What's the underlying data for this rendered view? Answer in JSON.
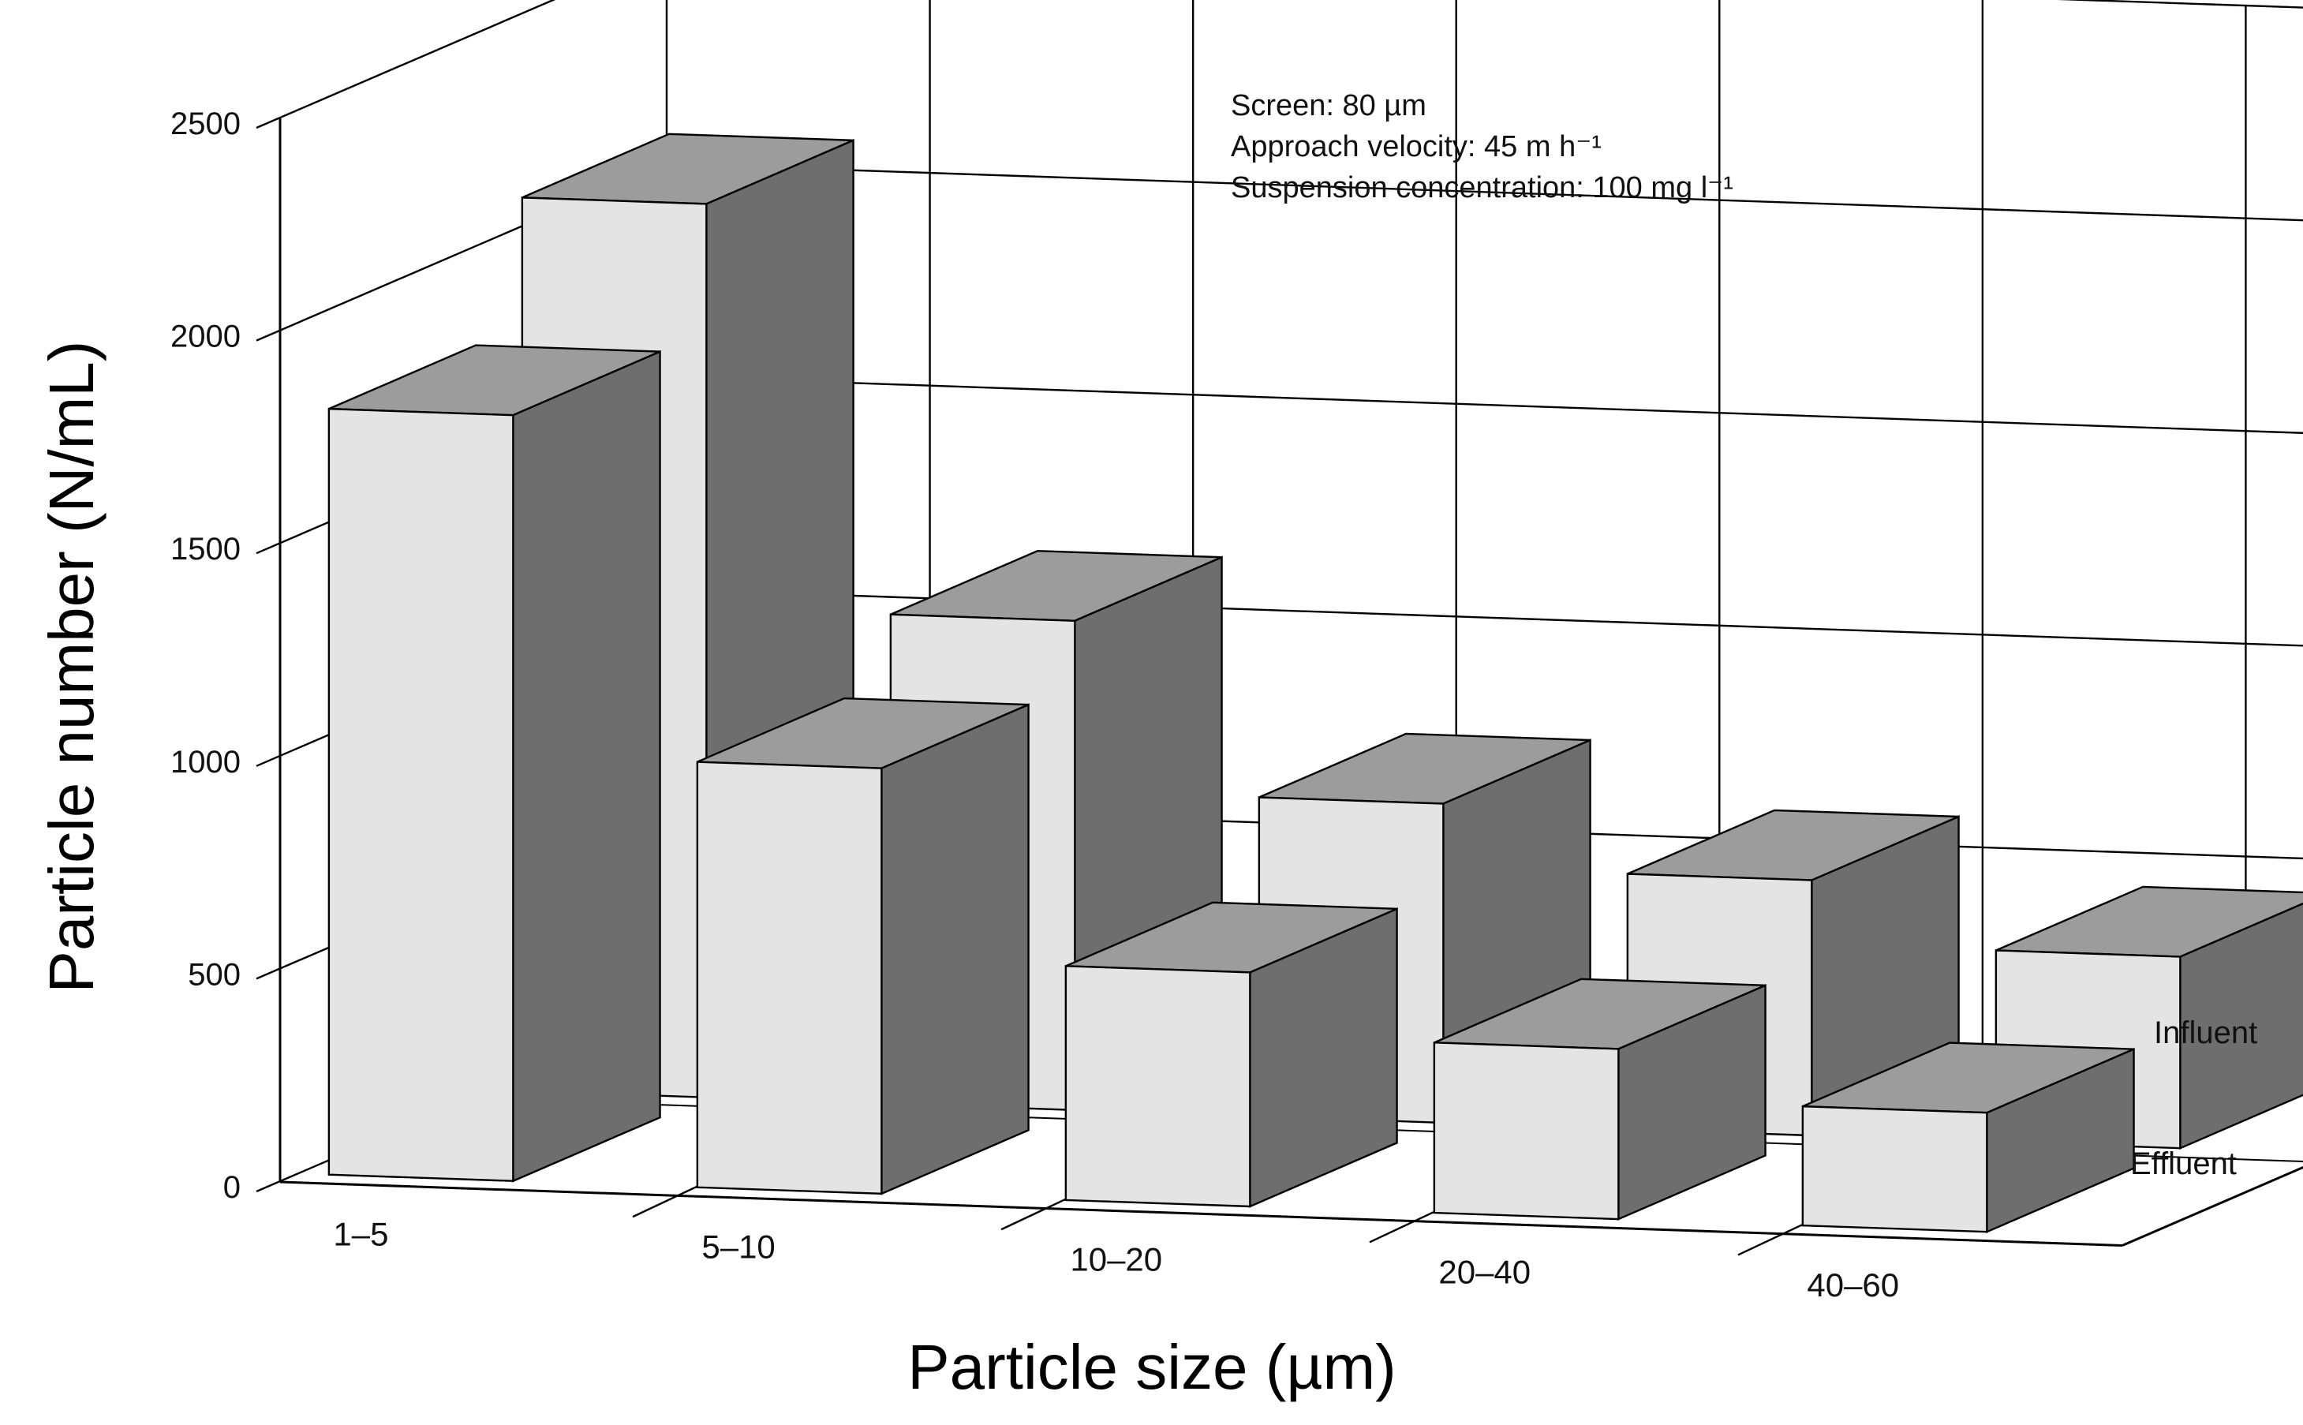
{
  "chart_data": {
    "type": "bar",
    "xlabel": "Particle size (µm)",
    "ylabel": "Particle number (N/mL)",
    "categories": [
      "1–5",
      "5–10",
      "10–20",
      "20–40",
      "40–60"
    ],
    "series": [
      {
        "name": "Influent",
        "values": [
          2100,
          1150,
          750,
          600,
          450
        ]
      },
      {
        "name": "Effluent",
        "values": [
          1800,
          1000,
          550,
          400,
          280
        ]
      }
    ],
    "ylim": [
      0,
      2500
    ],
    "yticks": [
      "0",
      "500",
      "1000",
      "1500",
      "2000",
      "2500"
    ],
    "annotations": [
      {
        "text": "Screen: 80 µm"
      },
      {
        "text": "Approach velocity: 45 m h⁻¹"
      },
      {
        "text": "Suspension concentration: 100 mg l⁻¹"
      }
    ],
    "grid": true,
    "legend_placement": "right",
    "colors": {
      "bar_front": "#e4e4e4",
      "bar_side": "#6e6e6e",
      "bar_top": "#9c9c9c",
      "grid": "#000000"
    }
  }
}
